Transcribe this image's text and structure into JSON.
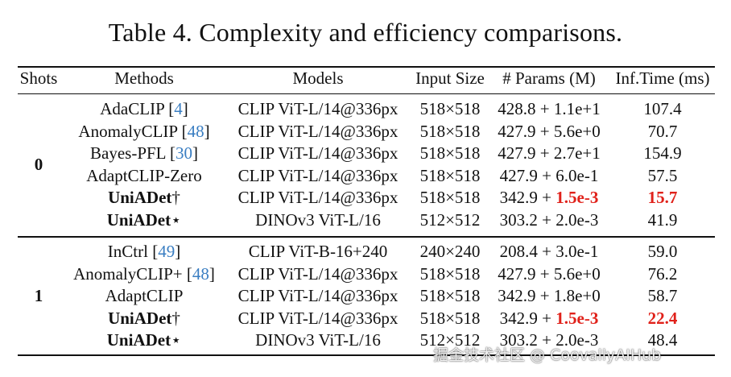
{
  "caption": "Table 4. Complexity and efficiency comparisons.",
  "headers": {
    "shots": "Shots",
    "methods": "Methods",
    "models": "Models",
    "input_size": "Input Size",
    "params": "# Params (M)",
    "inf_time": "Inf.Time (ms)"
  },
  "groups": [
    {
      "shots": "0",
      "rows": [
        {
          "method": "AdaCLIP",
          "cite": "4",
          "mark": "",
          "model": "CLIP ViT-L/14@336px",
          "input": "518×518",
          "params_base": "428.8 + ",
          "params_extra": "1.1e+1",
          "time": "107.4",
          "bold_method": false,
          "highlight": false
        },
        {
          "method": "AnomalyCLIP",
          "cite": "48",
          "mark": "",
          "model": "CLIP ViT-L/14@336px",
          "input": "518×518",
          "params_base": "427.9 + ",
          "params_extra": "5.6e+0",
          "time": "70.7",
          "bold_method": false,
          "highlight": false
        },
        {
          "method": "Bayes-PFL",
          "cite": "30",
          "mark": "",
          "model": "CLIP ViT-L/14@336px",
          "input": "518×518",
          "params_base": "427.9 + ",
          "params_extra": "2.7e+1",
          "time": "154.9",
          "bold_method": false,
          "highlight": false
        },
        {
          "method": "AdaptCLIP-Zero",
          "cite": "",
          "mark": "",
          "model": "CLIP ViT-L/14@336px",
          "input": "518×518",
          "params_base": "427.9 + ",
          "params_extra": "6.0e-1",
          "time": "57.5",
          "bold_method": false,
          "highlight": false
        },
        {
          "method": "UniADet",
          "cite": "",
          "mark": "†",
          "model": "CLIP ViT-L/14@336px",
          "input": "518×518",
          "params_base": "342.9 + ",
          "params_extra": "1.5e-3",
          "time": "15.7",
          "bold_method": true,
          "highlight": true
        },
        {
          "method": "UniADet",
          "cite": "",
          "mark": "⋆",
          "model": "DINOv3 ViT-L/16",
          "input": "512×512",
          "params_base": "303.2 + ",
          "params_extra": "2.0e-3",
          "time": "41.9",
          "bold_method": true,
          "highlight": false
        }
      ]
    },
    {
      "shots": "1",
      "rows": [
        {
          "method": "InCtrl",
          "cite": "49",
          "mark": "",
          "model": "CLIP ViT-B-16+240",
          "input": "240×240",
          "params_base": "208.4 + ",
          "params_extra": "3.0e-1",
          "time": "59.0",
          "bold_method": false,
          "highlight": false
        },
        {
          "method": "AnomalyCLIP+",
          "cite": "48",
          "mark": "",
          "model": "CLIP ViT-L/14@336px",
          "input": "518×518",
          "params_base": "427.9 + ",
          "params_extra": "5.6e+0",
          "time": "76.2",
          "bold_method": false,
          "highlight": false
        },
        {
          "method": "AdaptCLIP",
          "cite": "",
          "mark": "",
          "model": "CLIP ViT-L/14@336px",
          "input": "518×518",
          "params_base": "342.9 + ",
          "params_extra": "1.8e+0",
          "time": "58.7",
          "bold_method": false,
          "highlight": false
        },
        {
          "method": "UniADet",
          "cite": "",
          "mark": "†",
          "model": "CLIP ViT-L/14@336px",
          "input": "518×518",
          "params_base": "342.9 + ",
          "params_extra": "1.5e-3",
          "time": "22.4",
          "bold_method": true,
          "highlight": true
        },
        {
          "method": "UniADet",
          "cite": "",
          "mark": "⋆",
          "model": "DINOv3 ViT-L/16",
          "input": "512×512",
          "params_base": "303.2 + ",
          "params_extra": "2.0e-3",
          "time": "48.4",
          "bold_method": true,
          "highlight": false
        }
      ]
    }
  ],
  "watermark": "掘金技术社区 @ CoovallyAIHub"
}
